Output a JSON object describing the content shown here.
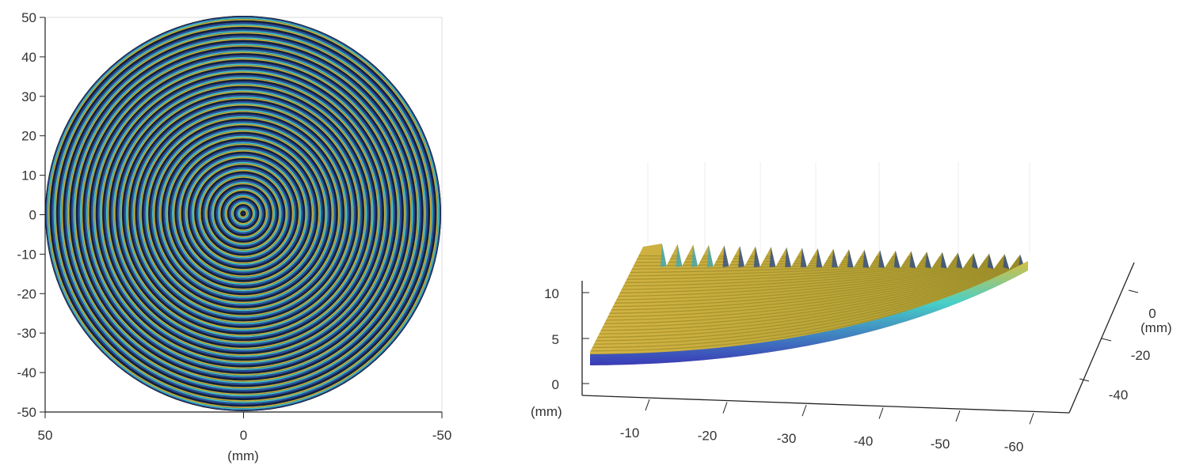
{
  "chart_data": [
    {
      "type": "heatmap",
      "description_kind": "concentric-ring surface map (top view)",
      "xlabel": "(mm)",
      "ylabel": "",
      "xlim": [
        50,
        -50
      ],
      "ylim": [
        -50,
        50
      ],
      "xticks": [
        "50",
        "0",
        "-50"
      ],
      "yticks": [
        "50",
        "40",
        "30",
        "20",
        "10",
        "0",
        "-10",
        "-20",
        "-30",
        "-40",
        "-50"
      ],
      "grid": false,
      "colors": {
        "dark": "#14213d",
        "blue": "#2a4fa0",
        "cyan": "#45c4c8",
        "yellow": "#c8b23c"
      }
    },
    {
      "type": "surface3d",
      "xlabel": "",
      "ylabel": "(mm)",
      "zlabel": "(mm)",
      "xticks": [
        "-10",
        "-20",
        "-30",
        "-40",
        "-50",
        "-60"
      ],
      "yticks": [
        "0",
        "-20",
        "-40"
      ],
      "zticks": [
        "10",
        "5",
        "0"
      ],
      "grid": true,
      "colors": {
        "top": "#c8aa3a",
        "edge_cyan": "#48d0c8",
        "edge_blue": "#3a3ab8"
      }
    }
  ]
}
